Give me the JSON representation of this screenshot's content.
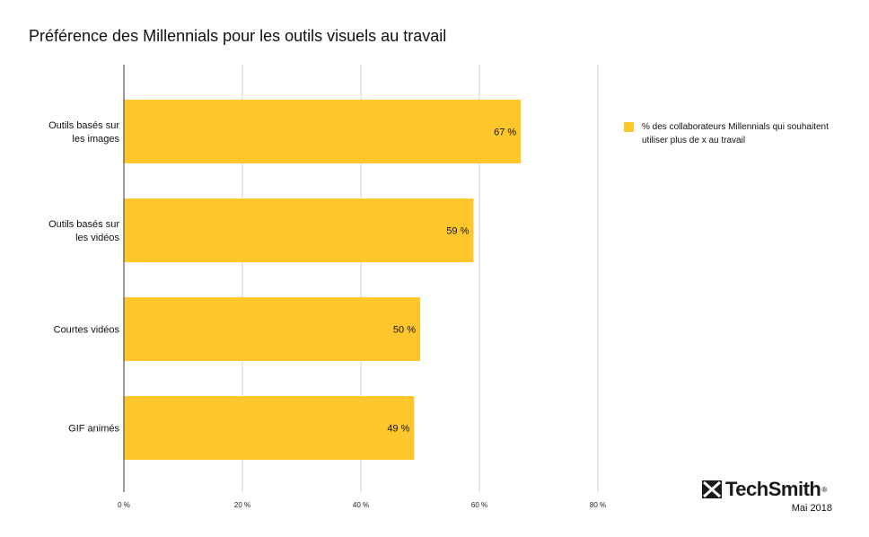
{
  "title": "Préférence des Millennials pour les outils visuels au travail",
  "legend": {
    "label": "% des collaborateurs Millennials qui souhaitent utiliser plus de x au travail",
    "color": "#FFC72C"
  },
  "brand": {
    "name": "TechSmith",
    "registered": "®",
    "date": "Mai 2018"
  },
  "chart_data": {
    "type": "bar",
    "orientation": "horizontal",
    "title": "Préférence des Millennials pour les outils visuels au travail",
    "categories": [
      [
        "Outils basés sur",
        "les images"
      ],
      [
        "Outils basés sur",
        "les vidéos"
      ],
      [
        "Courtes vidéos"
      ],
      [
        "GIF animés"
      ]
    ],
    "series": [
      {
        "name": "% des collaborateurs Millennials qui souhaitent utiliser plus de x au travail",
        "values": [
          67,
          59,
          50,
          49
        ],
        "color": "#FFC72C"
      }
    ],
    "data_labels": [
      "67 %",
      "59 %",
      "50 %",
      "49 %"
    ],
    "xlim": [
      0,
      80
    ],
    "x_ticks": [
      0,
      20,
      40,
      60,
      80
    ],
    "x_tick_labels": [
      "0 %",
      "20 %",
      "40 %",
      "60 %",
      "80 %"
    ],
    "grid": true,
    "legend_position": "right"
  }
}
